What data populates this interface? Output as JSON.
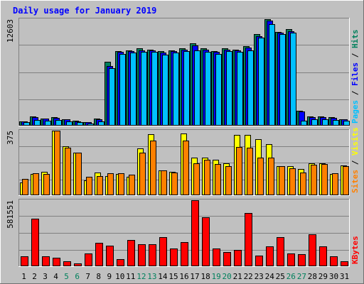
{
  "title": "Daily usage for January 2019",
  "colors": {
    "background": "#C0C0C0",
    "title": "#0000FF",
    "hits": "#00805C",
    "files": "#0000FF",
    "pages": "#00C0FF",
    "visits": "#FFFF00",
    "sites": "#FF8000",
    "kbytes": "#FF0000",
    "weekend_label": "#00805C"
  },
  "chart_data": [
    {
      "type": "bar",
      "x": [
        1,
        2,
        3,
        4,
        5,
        6,
        7,
        8,
        9,
        10,
        11,
        12,
        13,
        14,
        15,
        16,
        17,
        18,
        19,
        20,
        21,
        22,
        23,
        24,
        25,
        26,
        27,
        28,
        29,
        30,
        31
      ],
      "weekend_days": [
        5,
        6,
        12,
        13,
        19,
        20,
        26,
        27
      ],
      "ymax_label": "12603",
      "ylim": [
        0,
        12603
      ],
      "legend": [
        "Pages",
        "/",
        "Files",
        "/",
        "Hits"
      ],
      "series": [
        {
          "name": "Hits",
          "values": [
            450,
            1000,
            800,
            900,
            700,
            500,
            320,
            750,
            7500,
            8800,
            8900,
            9100,
            9000,
            8800,
            8900,
            9100,
            9750,
            9150,
            8800,
            9100,
            9000,
            9400,
            10800,
            12600,
            11100,
            11400,
            1700,
            1000,
            1000,
            900,
            700
          ]
        },
        {
          "name": "Files",
          "values": [
            420,
            930,
            750,
            840,
            650,
            460,
            300,
            700,
            7000,
            8700,
            8800,
            8900,
            8900,
            8600,
            8800,
            9000,
            9500,
            9000,
            8700,
            9000,
            8900,
            9200,
            10600,
            12400,
            11000,
            11200,
            1600,
            950,
            950,
            850,
            650
          ]
        },
        {
          "name": "Pages",
          "values": [
            300,
            600,
            500,
            600,
            450,
            300,
            200,
            400,
            6800,
            8500,
            8600,
            8700,
            8700,
            8400,
            8600,
            8800,
            8900,
            8700,
            8500,
            8800,
            8700,
            8900,
            10400,
            12000,
            10800,
            11000,
            500,
            700,
            700,
            600,
            500
          ]
        }
      ]
    },
    {
      "type": "bar",
      "x": [
        1,
        2,
        3,
        4,
        5,
        6,
        7,
        8,
        9,
        10,
        11,
        12,
        13,
        14,
        15,
        16,
        17,
        18,
        19,
        20,
        21,
        22,
        23,
        24,
        25,
        26,
        27,
        28,
        29,
        30,
        31
      ],
      "ymax_label": "375",
      "ylim": [
        0,
        375
      ],
      "legend": [
        "Sites",
        "/",
        "Visits"
      ],
      "series": [
        {
          "name": "Visits",
          "values": [
            70,
            120,
            135,
            375,
            285,
            245,
            85,
            130,
            110,
            120,
            105,
            270,
            355,
            140,
            135,
            360,
            215,
            215,
            205,
            185,
            350,
            350,
            325,
            295,
            165,
            165,
            150,
            185,
            185,
            120,
            170
          ]
        },
        {
          "name": "Sites",
          "values": [
            90,
            125,
            120,
            375,
            275,
            245,
            105,
            110,
            125,
            125,
            115,
            245,
            315,
            140,
            130,
            315,
            185,
            205,
            180,
            165,
            280,
            275,
            215,
            215,
            165,
            155,
            130,
            175,
            180,
            125,
            165
          ]
        }
      ]
    },
    {
      "type": "bar",
      "x": [
        1,
        2,
        3,
        4,
        5,
        6,
        7,
        8,
        9,
        10,
        11,
        12,
        13,
        14,
        15,
        16,
        17,
        18,
        19,
        20,
        21,
        22,
        23,
        24,
        25,
        26,
        27,
        28,
        29,
        30,
        31
      ],
      "ymax_label": "581551",
      "ylim": [
        0,
        581551
      ],
      "legend": [
        "KBytes"
      ],
      "series": [
        {
          "name": "KBytes",
          "values": [
            80000,
            420000,
            80000,
            70000,
            40000,
            20000,
            110000,
            200000,
            180000,
            60000,
            230000,
            190000,
            190000,
            250000,
            150000,
            210000,
            581000,
            430000,
            150000,
            120000,
            140000,
            470000,
            90000,
            170000,
            250000,
            110000,
            100000,
            280000,
            170000,
            80000,
            40000
          ]
        }
      ]
    }
  ]
}
